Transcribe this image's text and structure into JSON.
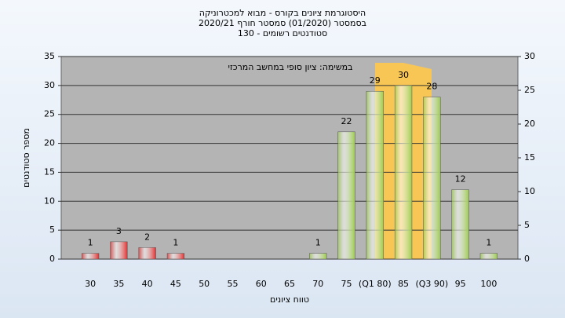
{
  "chart_data": {
    "type": "bar",
    "title": "היסטוגרמת ציונים בקורס - מבוא למכטרוניקה",
    "subtitle": "בסמסטר  (01/2020)  סמסטר חורף  2020/21",
    "subtitle2": "סטודנטים רשומים - 130",
    "annotation": "במשימה: ציון סופי במחשב המרכזי",
    "x_label": "טווח ציונים",
    "y_label": "מספר סטודנטים",
    "categories": [
      "30",
      "35",
      "40",
      "45",
      "50",
      "55",
      "60",
      "65",
      "70",
      "75",
      "(Q1 80)",
      "85",
      "(Q3 90)",
      "95",
      "100"
    ],
    "values": [
      1,
      3,
      2,
      1,
      0,
      0,
      0,
      0,
      1,
      22,
      29,
      30,
      28,
      12,
      1
    ],
    "colors": [
      "#e03030",
      "#e03030",
      "#e03030",
      "#e03030",
      "#e03030",
      "#e03030",
      "#e03030",
      "#e03030",
      "#9ccb4e",
      "#9ccb4e",
      "#9ccb4e",
      "#9ccb4e",
      "#9ccb4e",
      "#9ccb4e",
      "#9ccb4e"
    ],
    "ylim": [
      0,
      35
    ],
    "yticks": [
      0,
      5,
      10,
      15,
      20,
      25,
      30,
      35
    ],
    "y2lim": [
      0,
      30
    ],
    "y2ticks": [
      0,
      5,
      10,
      15,
      20,
      25,
      30
    ],
    "grid": true
  }
}
